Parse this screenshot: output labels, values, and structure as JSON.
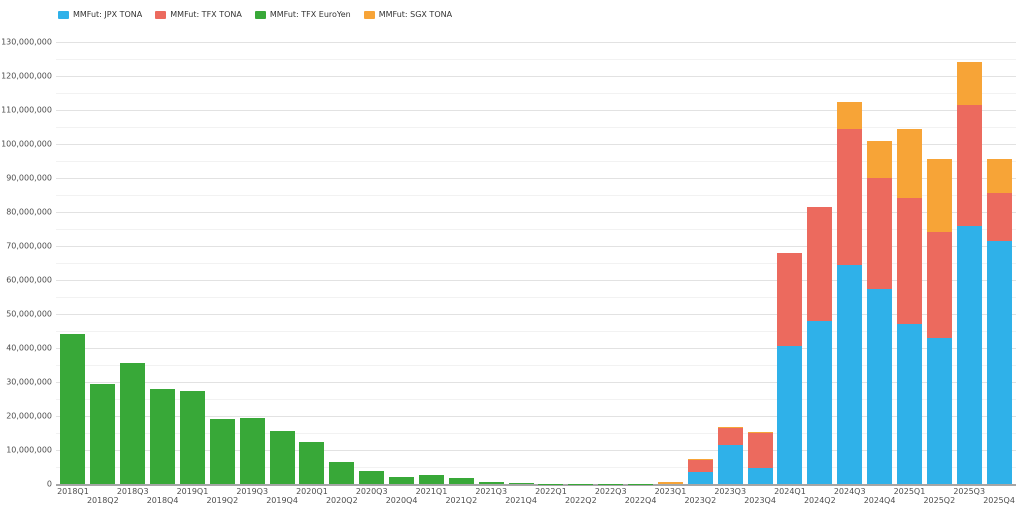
{
  "legend": {
    "items": [
      {
        "label": "MMFut: JPX TONA",
        "color": "#2fb1e9"
      },
      {
        "label": "MMFut: TFX TONA",
        "color": "#ec6a5e"
      },
      {
        "label": "MMFut: TFX EuroYen",
        "color": "#38a838"
      },
      {
        "label": "MMFut: SGX TONA",
        "color": "#f7a437"
      }
    ]
  },
  "chart_data": {
    "type": "bar",
    "stacked": true,
    "title": "",
    "xlabel": "",
    "ylabel": "",
    "ylim": [
      0,
      130000000
    ],
    "y_major_step": 10000000,
    "y_minor_step": 5000000,
    "grid": true,
    "legend_position": "top-left",
    "categories": [
      "2018Q1",
      "2018Q2",
      "2018Q3",
      "2018Q4",
      "2019Q1",
      "2019Q2",
      "2019Q3",
      "2019Q4",
      "2020Q1",
      "2020Q2",
      "2020Q3",
      "2020Q4",
      "2021Q1",
      "2021Q2",
      "2021Q3",
      "2021Q4",
      "2022Q1",
      "2022Q2",
      "2022Q3",
      "2022Q4",
      "2023Q1",
      "2023Q2",
      "2023Q3",
      "2023Q4",
      "2024Q1",
      "2024Q2",
      "2024Q3",
      "2024Q4",
      "2025Q1",
      "2025Q2",
      "2025Q3",
      "2025Q4"
    ],
    "series": [
      {
        "name": "MMFut: JPX TONA",
        "color": "#2fb1e9",
        "values": [
          0,
          0,
          0,
          0,
          0,
          0,
          0,
          0,
          0,
          0,
          0,
          0,
          0,
          0,
          0,
          0,
          0,
          0,
          0,
          0,
          0,
          3500000,
          11500000,
          4700000,
          40500000,
          48000000,
          64500000,
          57500000,
          47000000,
          43000000,
          76000000,
          71500000
        ]
      },
      {
        "name": "MMFut: TFX TONA",
        "color": "#ec6a5e",
        "values": [
          0,
          0,
          0,
          0,
          0,
          0,
          0,
          0,
          0,
          0,
          0,
          0,
          0,
          0,
          0,
          0,
          0,
          0,
          0,
          0,
          0,
          3600000,
          5000000,
          10200000,
          27500000,
          33500000,
          40000000,
          32500000,
          37000000,
          31000000,
          35500000,
          14000000
        ]
      },
      {
        "name": "MMFut: TFX EuroYen",
        "color": "#38a838",
        "values": [
          44000000,
          29500000,
          35500000,
          28000000,
          27500000,
          19000000,
          19500000,
          15500000,
          12300000,
          6500000,
          3800000,
          2200000,
          2700000,
          1700000,
          700000,
          250000,
          150000,
          100000,
          60000,
          50000,
          0,
          0,
          0,
          0,
          0,
          0,
          0,
          0,
          0,
          0,
          0,
          0
        ]
      },
      {
        "name": "MMFut: SGX TONA",
        "color": "#f7a437",
        "values": [
          0,
          0,
          0,
          0,
          0,
          0,
          0,
          0,
          0,
          0,
          0,
          0,
          0,
          0,
          0,
          0,
          0,
          0,
          0,
          0,
          500000,
          300000,
          300000,
          400000,
          0,
          0,
          8000000,
          11000000,
          20500000,
          21500000,
          12500000,
          10000000
        ]
      }
    ],
    "y_tick_labels": [
      "0",
      "10,000,000",
      "20,000,000",
      "30,000,000",
      "40,000,000",
      "50,000,000",
      "60,000,000",
      "70,000,000",
      "80,000,000",
      "90,000,000",
      "100,000,000",
      "110,000,000",
      "120,000,000",
      "130,000,000"
    ]
  },
  "colors": {
    "grid_major": "#e2e2e2",
    "grid_minor": "#f2f2f2",
    "axis": "#a6a6a6",
    "tick_text": "#4d4d4d"
  }
}
